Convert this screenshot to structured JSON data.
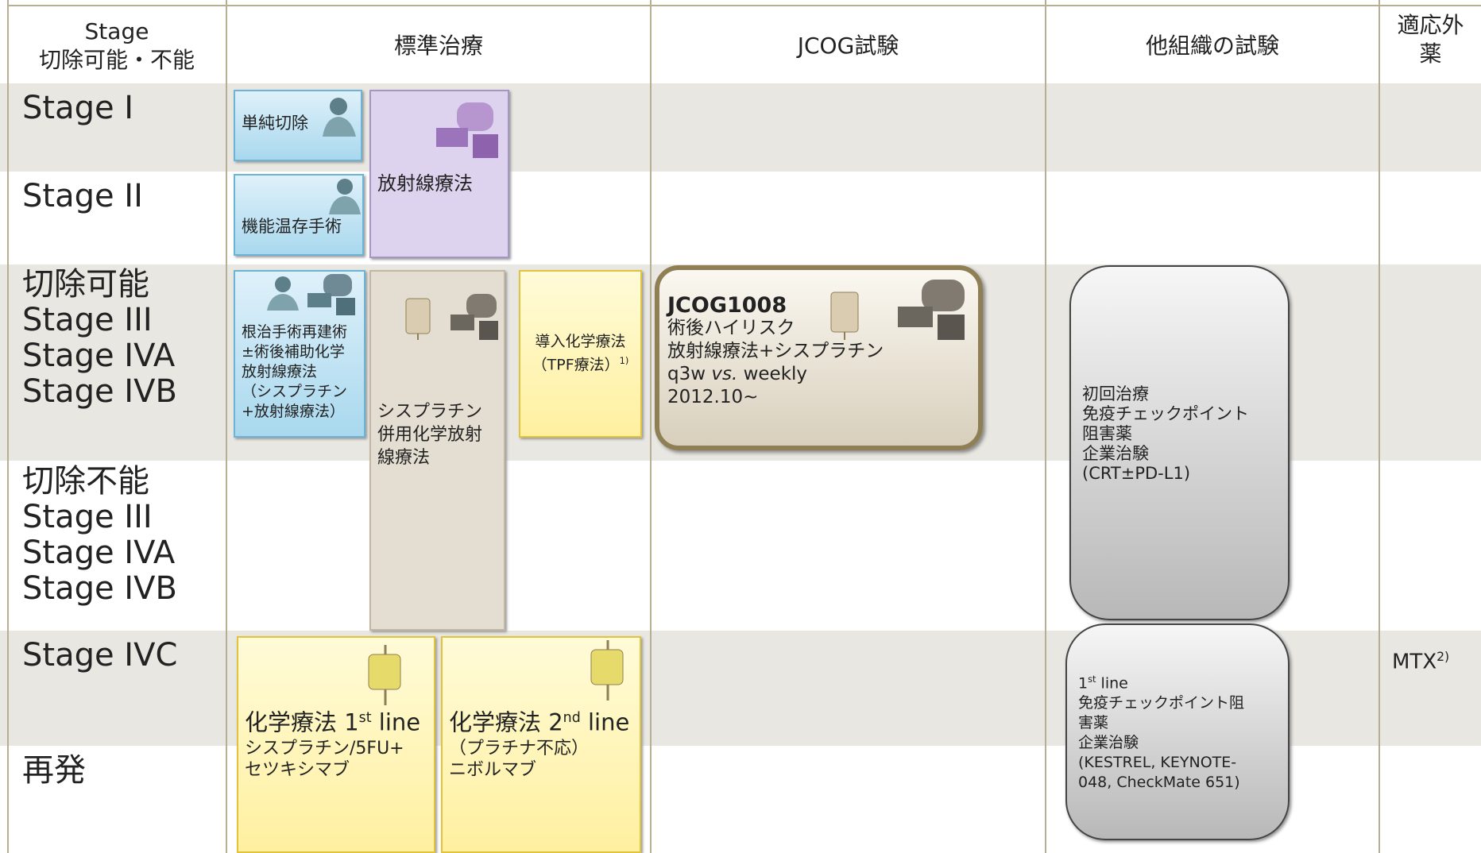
{
  "header": {
    "columns": [
      [
        "Stage",
        "切除可能・不能"
      ],
      [
        "標準治療"
      ],
      [
        "JCOG試験"
      ],
      [
        "他組織の試験"
      ],
      [
        "適応外",
        "薬"
      ]
    ]
  },
  "rows": [
    [
      "Stage I"
    ],
    [
      "Stage II"
    ],
    [
      "切除可能",
      "Stage III",
      "Stage IVA",
      "Stage IVB"
    ],
    [
      "切除不能",
      "Stage III",
      "Stage IVA",
      "Stage IVB"
    ],
    [
      "Stage IVC"
    ],
    [
      "再発"
    ]
  ],
  "boxes": [
    {
      "lines": [
        "単純切除"
      ]
    },
    {
      "lines": [
        "機能温存手術"
      ]
    },
    {
      "lines": [
        "放射線療法"
      ]
    },
    {
      "lines": [
        "根治手術再建術",
        "±術後補助化学",
        "放射線療法",
        "（シスプラチン",
        "+放射線療法）"
      ]
    },
    {
      "lines": [
        "シスプラチン",
        "併用化学放射",
        "線療法"
      ]
    },
    {
      "lines": [
        "導入化学療法",
        [
          "（TPF療法）",
          "1)"
        ]
      ]
    },
    {
      "title": "JCOG1008",
      "lines": [
        "術後ハイリスク",
        "放射線療法+シスプラチン",
        [
          "q3w ",
          "vs.",
          " weekly"
        ],
        "2012.10~"
      ]
    },
    {
      "lines": [
        "初回治療",
        "免疫チェックポイント",
        "阻害薬",
        "企業治験",
        "(CRT±PD-L1)"
      ]
    },
    {
      "lines": [
        [
          "1",
          "st",
          " line"
        ],
        "免疫チェックポイント阻",
        "害薬",
        "企業治験",
        "(KESTREL, KEYNOTE-",
        "048, CheckMate 651)"
      ]
    },
    {
      "lines": [
        [
          "化学療法 1",
          "st",
          " line"
        ],
        "シスプラチン/5FU+",
        "セツキシマブ"
      ]
    },
    {
      "lines": [
        [
          "化学療法 2",
          "nd",
          " line"
        ],
        "（プラチナ不応）",
        "ニボルマブ"
      ]
    }
  ],
  "off_label": {
    "lines": [
      [
        "MTX",
        "2)"
      ]
    ]
  }
}
